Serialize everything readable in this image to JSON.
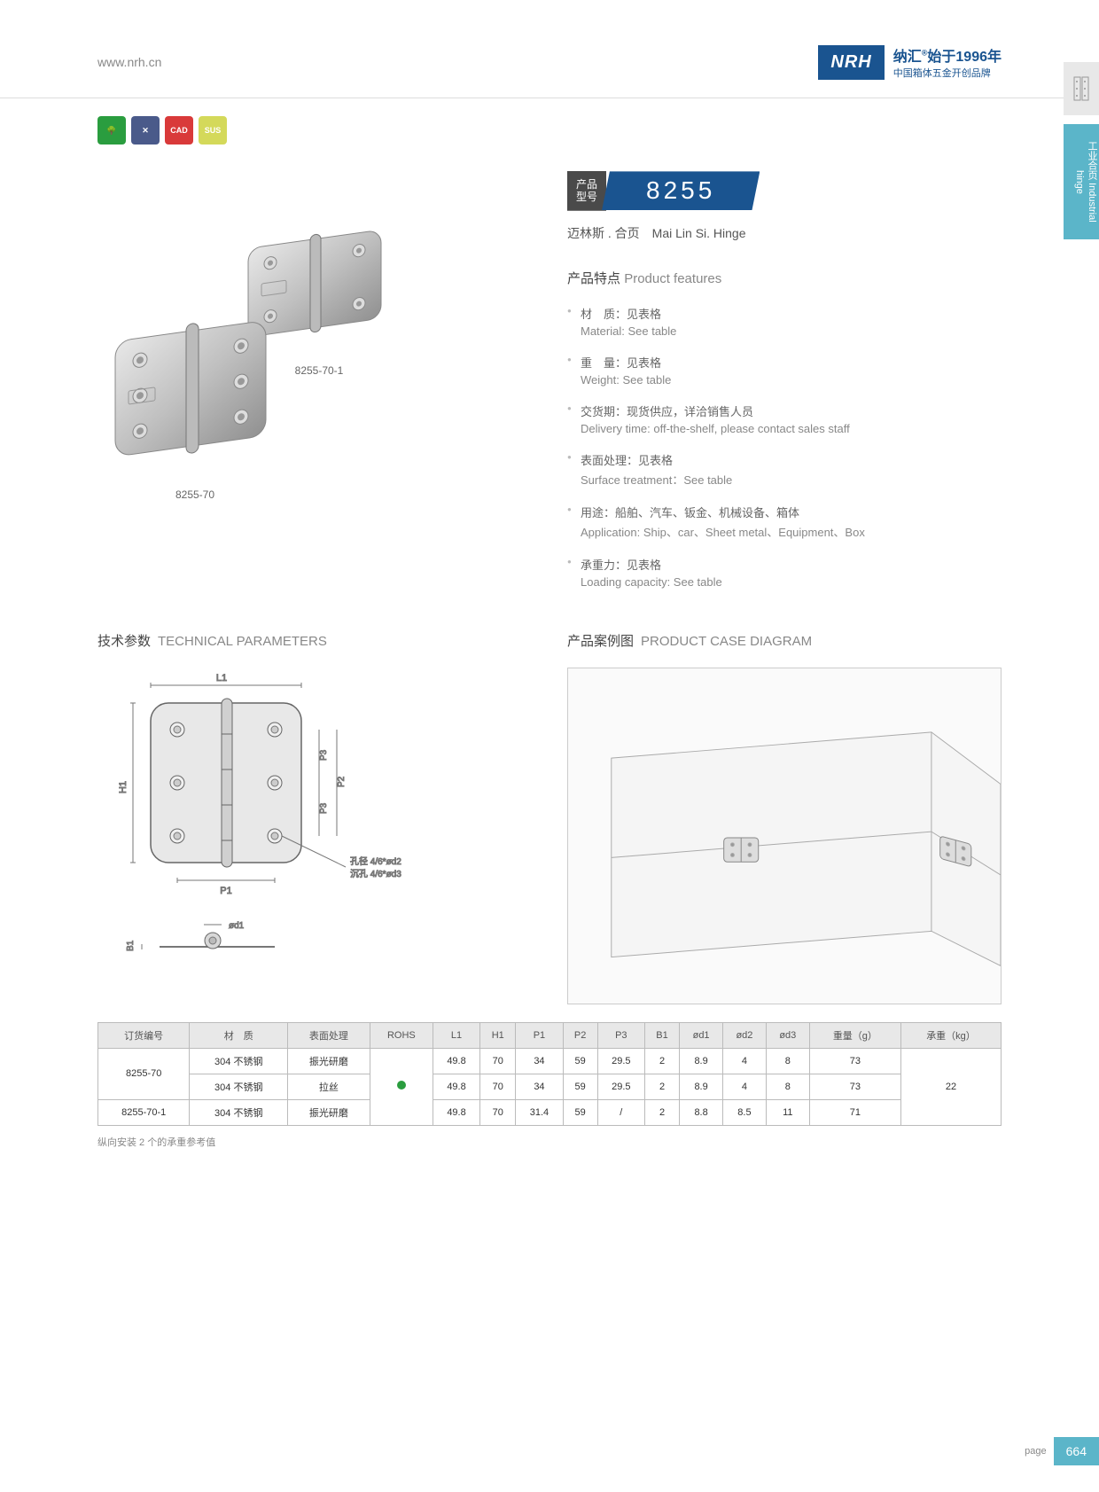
{
  "header": {
    "url": "www.nrh.cn",
    "brand_cn": "纳汇",
    "brand_slogan": "始于1996年",
    "brand_sub": "中国箱体五金开创品牌",
    "logo": "NRH"
  },
  "badges": [
    {
      "color": "#2a9d3f",
      "label": "🌳"
    },
    {
      "color": "#4a5a8a",
      "label": "✕"
    },
    {
      "color": "#d93a3a",
      "label": "CAD"
    },
    {
      "color": "#d4d95a",
      "label": "SUS"
    }
  ],
  "side_tab": "工业合页 Industrial hinge",
  "product": {
    "label_cn": "产品\n型号",
    "number": "8255",
    "subtitle_cn": "迈林斯 . 合页",
    "subtitle_en": "Mai Lin Si. Hinge"
  },
  "product_images": [
    {
      "label": "8255-70"
    },
    {
      "label": "8255-70-1"
    }
  ],
  "features_title_cn": "产品特点",
  "features_title_en": "Product features",
  "features": [
    {
      "cn": "材　质：见表格",
      "en": "Material: See table"
    },
    {
      "cn": "重　量：见表格",
      "en": "Weight: See table"
    },
    {
      "cn": "交货期：现货供应，详洽销售人员",
      "en": "Delivery time: off-the-shelf, please contact sales staff"
    },
    {
      "cn": "表面处理：见表格",
      "en": "Surface treatment：See table"
    },
    {
      "cn": "用途：船舶、汽车、钣金、机械设备、箱体",
      "en": "Application: Ship、car、Sheet metal、Equipment、Box"
    },
    {
      "cn": "承重力：见表格",
      "en": "Loading capacity: See table"
    }
  ],
  "tech_title_cn": "技术参数",
  "tech_title_en": "TECHNICAL PARAMETERS",
  "case_title_cn": "产品案例图",
  "case_title_en": "PRODUCT CASE DIAGRAM",
  "dim_labels": {
    "L1": "L1",
    "H1": "H1",
    "P1": "P1",
    "P2": "P2",
    "P3": "P3",
    "B1": "B1",
    "od1": "ød1",
    "note1": "孔径 4/6*ød2",
    "note2": "沉孔 4/6*ød3"
  },
  "table": {
    "headers": [
      "订货编号",
      "材　质",
      "表面处理",
      "ROHS",
      "L1",
      "H1",
      "P1",
      "P2",
      "P3",
      "B1",
      "ød1",
      "ød2",
      "ød3",
      "重量（g）",
      "承重（kg）"
    ],
    "rows": [
      {
        "code": "8255-70",
        "mat": "304 不锈钢",
        "surf": "振光研磨",
        "L1": "49.8",
        "H1": "70",
        "P1": "34",
        "P2": "59",
        "P3": "29.5",
        "B1": "2",
        "od1": "8.9",
        "od2": "4",
        "od3": "8",
        "wt": "73",
        "load": "22",
        "rowspan_code": 2,
        "rowspan_load": 3,
        "rohs_rowspan": 3
      },
      {
        "code": "",
        "mat": "304 不锈钢",
        "surf": "拉丝",
        "L1": "49.8",
        "H1": "70",
        "P1": "34",
        "P2": "59",
        "P3": "29.5",
        "B1": "2",
        "od1": "8.9",
        "od2": "4",
        "od3": "8",
        "wt": "73"
      },
      {
        "code": "8255-70-1",
        "mat": "304 不锈钢",
        "surf": "振光研磨",
        "L1": "49.8",
        "H1": "70",
        "P1": "31.4",
        "P2": "59",
        "P3": "/",
        "B1": "2",
        "od1": "8.8",
        "od2": "8.5",
        "od3": "11",
        "wt": "71"
      }
    ],
    "note": "纵向安装 2 个的承重参考值"
  },
  "page": {
    "label": "page",
    "number": "664"
  }
}
